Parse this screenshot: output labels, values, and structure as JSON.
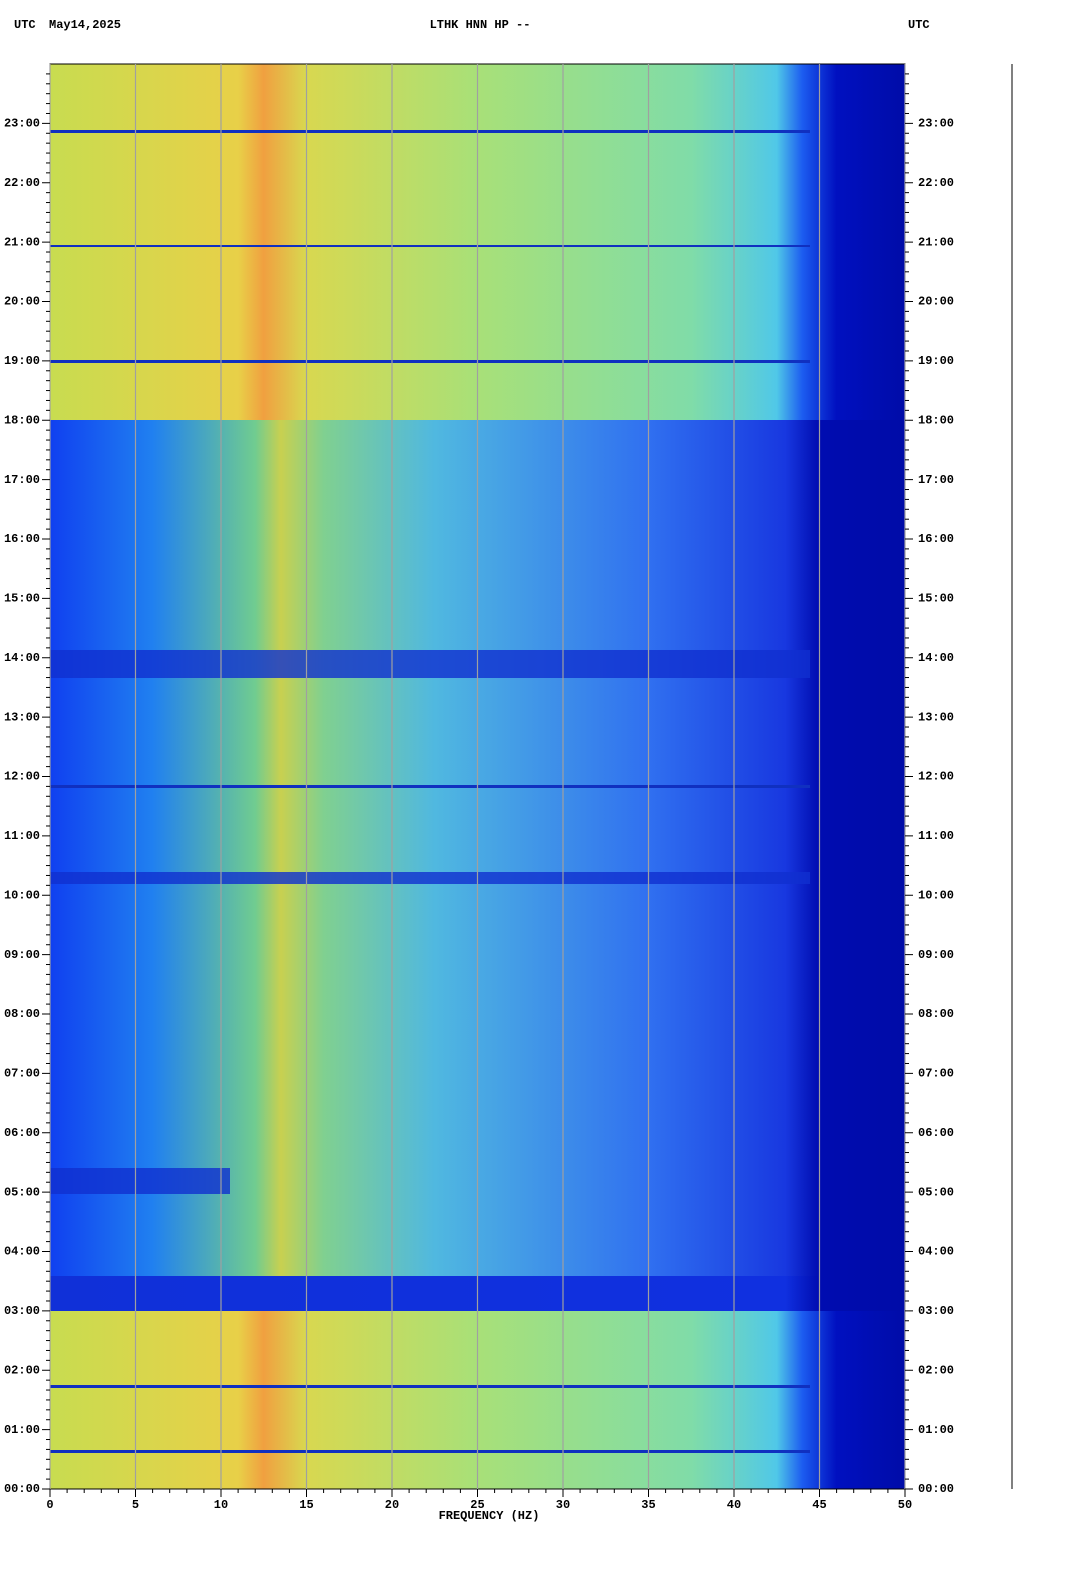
{
  "chart_data": {
    "type": "spectrogram",
    "title": "LTHK HNN HP --",
    "left_label": "UTC",
    "date": "May14,2025",
    "right_label": "UTC",
    "xlabel": "FREQUENCY (HZ)",
    "xlim": [
      0,
      50
    ],
    "xticks": [
      0,
      5,
      10,
      15,
      20,
      25,
      30,
      35,
      40,
      45,
      50
    ],
    "ylim": [
      0,
      24
    ],
    "yticks": [
      {
        "value": 0,
        "label": "00:00"
      },
      {
        "value": 1,
        "label": "01:00"
      },
      {
        "value": 2,
        "label": "02:00"
      },
      {
        "value": 3,
        "label": "03:00"
      },
      {
        "value": 4,
        "label": "04:00"
      },
      {
        "value": 5,
        "label": "05:00"
      },
      {
        "value": 6,
        "label": "06:00"
      },
      {
        "value": 7,
        "label": "07:00"
      },
      {
        "value": 8,
        "label": "08:00"
      },
      {
        "value": 9,
        "label": "09:00"
      },
      {
        "value": 10,
        "label": "10:00"
      },
      {
        "value": 11,
        "label": "11:00"
      },
      {
        "value": 12,
        "label": "12:00"
      },
      {
        "value": 13,
        "label": "13:00"
      },
      {
        "value": 14,
        "label": "14:00"
      },
      {
        "value": 15,
        "label": "15:00"
      },
      {
        "value": 16,
        "label": "16:00"
      },
      {
        "value": 17,
        "label": "17:00"
      },
      {
        "value": 18,
        "label": "18:00"
      },
      {
        "value": 19,
        "label": "19:00"
      },
      {
        "value": 20,
        "label": "20:00"
      },
      {
        "value": 21,
        "label": "21:00"
      },
      {
        "value": 22,
        "label": "22:00"
      },
      {
        "value": 23,
        "label": "23:00"
      }
    ],
    "grid": true
  }
}
